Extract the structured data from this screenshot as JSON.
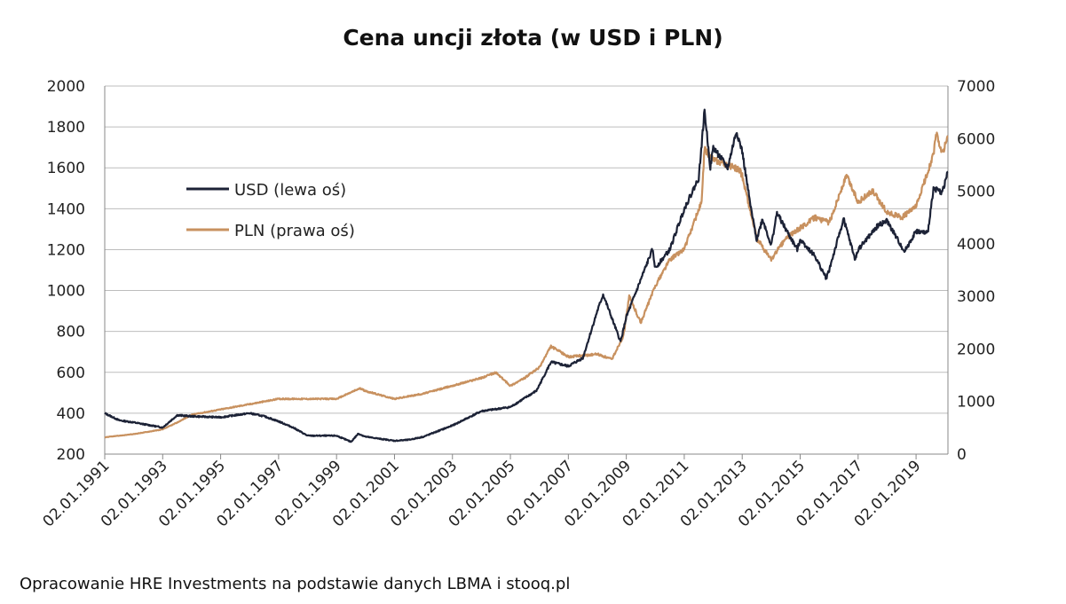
{
  "chart_data": {
    "type": "line",
    "title": "Cena uncji złota (w USD i PLN)",
    "source_note": "Opracowanie HRE Investments na podstawie danych LBMA i stooq.pl",
    "xlim": [
      1991.0,
      2020.1
    ],
    "x_tick_labels": [
      "02.01.1991",
      "02.01.1993",
      "02.01.1995",
      "02.01.1997",
      "02.01.1999",
      "02.01.2001",
      "02.01.2003",
      "02.01.2005",
      "02.01.2007",
      "02.01.2009",
      "02.01.2011",
      "02.01.2013",
      "02.01.2015",
      "02.01.2017",
      "02.01.2019"
    ],
    "y_left": {
      "lim": [
        200,
        2000
      ],
      "ticks": [
        200,
        400,
        600,
        800,
        1000,
        1200,
        1400,
        1600,
        1800,
        2000
      ]
    },
    "y_right": {
      "lim": [
        0,
        7000
      ],
      "ticks": [
        0,
        1000,
        2000,
        3000,
        4000,
        5000,
        6000,
        7000
      ]
    },
    "grid": true,
    "legend_placement": "upper-left",
    "series": [
      {
        "name": "USD (lewa oś)",
        "axis": "left",
        "color": "#1c2236",
        "x": [
          1991.0,
          1991.5,
          1992,
          1993,
          1993.5,
          1994,
          1995,
          1996,
          1996.5,
          1997,
          1997.5,
          1998,
          1999,
          1999.5,
          1999.75,
          2000,
          2001,
          2001.5,
          2002,
          2003,
          2004,
          2005,
          2005.9,
          2006.4,
          2007,
          2007.5,
          2008,
          2008.2,
          2008.8,
          2009,
          2009.9,
          2010,
          2010.5,
          2011,
          2011.5,
          2011.7,
          2011.9,
          2012,
          2012.5,
          2012.8,
          2013,
          2013.3,
          2013.5,
          2013.7,
          2014,
          2014.2,
          2014.5,
          2014.9,
          2015,
          2015.5,
          2015.9,
          2016,
          2016.5,
          2016.9,
          2017,
          2017.7,
          2018,
          2018.6,
          2019,
          2019.4,
          2019.6,
          2019.9,
          2020.1
        ],
        "y": [
          400,
          365,
          355,
          330,
          390,
          385,
          380,
          400,
          385,
          360,
          330,
          290,
          290,
          260,
          300,
          285,
          265,
          270,
          285,
          340,
          410,
          430,
          510,
          650,
          630,
          670,
          900,
          980,
          750,
          870,
          1200,
          1110,
          1200,
          1400,
          1550,
          1880,
          1600,
          1700,
          1600,
          1780,
          1680,
          1400,
          1250,
          1350,
          1220,
          1380,
          1300,
          1200,
          1250,
          1170,
          1060,
          1100,
          1350,
          1150,
          1200,
          1320,
          1340,
          1190,
          1290,
          1280,
          1500,
          1480,
          1580
        ]
      },
      {
        "name": "PLN (prawa oś)",
        "axis": "right",
        "color": "#c8915f",
        "x": [
          1991.0,
          1991.5,
          1992,
          1993,
          1993.5,
          1994,
          1995,
          1996,
          1997,
          1998,
          1999,
          1999.8,
          2000,
          2001,
          2002,
          2003,
          2004,
          2004.5,
          2005,
          2005.5,
          2006,
          2006.4,
          2007,
          2008,
          2008.5,
          2008.9,
          2009.1,
          2009.5,
          2010,
          2010.5,
          2011,
          2011.6,
          2011.7,
          2012,
          2012.5,
          2012.9,
          2013,
          2013.5,
          2014,
          2014.5,
          2015,
          2015.5,
          2016,
          2016.6,
          2017,
          2017.5,
          2018,
          2018.5,
          2019,
          2019.6,
          2019.7,
          2019.9,
          2020.1
        ],
        "y": [
          320,
          350,
          380,
          470,
          600,
          750,
          850,
          950,
          1050,
          1050,
          1050,
          1250,
          1200,
          1050,
          1150,
          1300,
          1450,
          1550,
          1300,
          1450,
          1650,
          2050,
          1850,
          1900,
          1800,
          2250,
          3000,
          2500,
          3200,
          3700,
          3900,
          4800,
          5800,
          5600,
          5500,
          5400,
          5300,
          4100,
          3700,
          4100,
          4300,
          4500,
          4400,
          5300,
          4800,
          5000,
          4600,
          4500,
          4700,
          5700,
          6100,
          5700,
          6050
        ]
      }
    ]
  }
}
